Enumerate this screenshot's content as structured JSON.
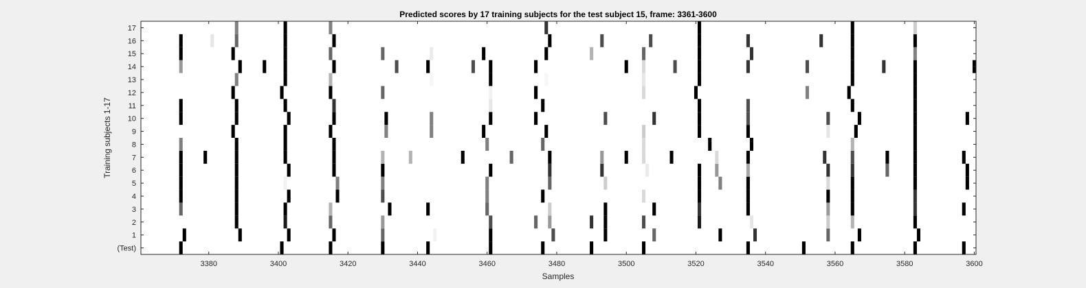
{
  "chart_data": {
    "type": "heatmap",
    "title": "Predicted scores by 17 training subjects for the test subject 15, frame: 3361-3600",
    "xlabel": "Samples",
    "ylabel": "Training subjects 1-17",
    "xlim": [
      3361,
      3600
    ],
    "xticks": [
      3380,
      3400,
      3420,
      3440,
      3460,
      3480,
      3500,
      3520,
      3540,
      3560,
      3580,
      3600
    ],
    "yticklabels": [
      "(Test)",
      "1",
      "2",
      "3",
      "4",
      "5",
      "6",
      "7",
      "8",
      "9",
      "10",
      "11",
      "12",
      "13",
      "14",
      "15",
      "16",
      "17"
    ],
    "colormap": {
      "low": "#ffffff",
      "high": "#000000"
    },
    "value_range": [
      0,
      1
    ],
    "grid": false,
    "cells": [
      {
        "row": "(Test)",
        "points": [
          [
            3372,
            1
          ],
          [
            3401,
            1
          ],
          [
            3415,
            1
          ],
          [
            3430,
            1
          ],
          [
            3443,
            1
          ],
          [
            3461,
            1
          ],
          [
            3476,
            1
          ],
          [
            3490,
            1
          ],
          [
            3505,
            1
          ],
          [
            3535,
            1
          ],
          [
            3551,
            1
          ],
          [
            3565,
            1
          ],
          [
            3583,
            1
          ],
          [
            3597,
            1
          ]
        ]
      },
      {
        "row": "1",
        "points": [
          [
            3373,
            1
          ],
          [
            3389,
            1
          ],
          [
            3403,
            1
          ],
          [
            3416,
            1
          ],
          [
            3430,
            0.6
          ],
          [
            3445,
            0.05
          ],
          [
            3461,
            1
          ],
          [
            3479,
            0.7
          ],
          [
            3494,
            1
          ],
          [
            3508,
            0.6
          ],
          [
            3527,
            1
          ],
          [
            3537,
            0.8
          ],
          [
            3558,
            0.6
          ],
          [
            3567,
            1
          ],
          [
            3584,
            1
          ]
        ]
      },
      {
        "row": "2",
        "points": [
          [
            3388,
            1
          ],
          [
            3402,
            0.9
          ],
          [
            3415,
            0.6
          ],
          [
            3430,
            0.4
          ],
          [
            3461,
            0.7
          ],
          [
            3474,
            0.6
          ],
          [
            3478,
            0.4
          ],
          [
            3490,
            0.8
          ],
          [
            3494,
            1
          ],
          [
            3505,
            0.7
          ],
          [
            3521,
            0.9
          ],
          [
            3536,
            0.1
          ],
          [
            3558,
            0.2
          ],
          [
            3565,
            0.3
          ],
          [
            3583,
            1
          ]
        ]
      },
      {
        "row": "3",
        "points": [
          [
            3372,
            0.6
          ],
          [
            3388,
            1
          ],
          [
            3402,
            1
          ],
          [
            3415,
            0.3
          ],
          [
            3432,
            1
          ],
          [
            3443,
            1
          ],
          [
            3460,
            0.6
          ],
          [
            3478,
            0.2
          ],
          [
            3494,
            1
          ],
          [
            3508,
            1
          ],
          [
            3521,
            0.8
          ],
          [
            3535,
            1
          ],
          [
            3558,
            0.4
          ],
          [
            3565,
            1
          ],
          [
            3583,
            0.8
          ],
          [
            3597,
            1
          ]
        ]
      },
      {
        "row": "4",
        "points": [
          [
            3372,
            1
          ],
          [
            3388,
            1
          ],
          [
            3403,
            1
          ],
          [
            3417,
            1
          ],
          [
            3430,
            0.7
          ],
          [
            3460,
            0.5
          ],
          [
            3476,
            1
          ],
          [
            3505,
            0.15
          ],
          [
            3521,
            1
          ],
          [
            3535,
            1
          ],
          [
            3558,
            1
          ],
          [
            3565,
            1
          ],
          [
            3583,
            0.8
          ]
        ]
      },
      {
        "row": "5",
        "points": [
          [
            3372,
            1
          ],
          [
            3388,
            1
          ],
          [
            3402,
            0.05
          ],
          [
            3417,
            0.5
          ],
          [
            3430,
            0.5
          ],
          [
            3460,
            0.5
          ],
          [
            3478,
            0.6
          ],
          [
            3494,
            0.2
          ],
          [
            3521,
            1
          ],
          [
            3527,
            0.5
          ],
          [
            3535,
            1
          ],
          [
            3558,
            0.15
          ],
          [
            3565,
            1
          ],
          [
            3583,
            1
          ],
          [
            3598,
            1
          ]
        ]
      },
      {
        "row": "6",
        "points": [
          [
            3372,
            1
          ],
          [
            3388,
            1
          ],
          [
            3403,
            1
          ],
          [
            3416,
            1
          ],
          [
            3430,
            1
          ],
          [
            3461,
            1
          ],
          [
            3478,
            0.8
          ],
          [
            3493,
            0.8
          ],
          [
            3506,
            0.08
          ],
          [
            3521,
            1
          ],
          [
            3526,
            0.4
          ],
          [
            3535,
            0.35
          ],
          [
            3558,
            0.8
          ],
          [
            3565,
            0.8
          ],
          [
            3575,
            0.6
          ],
          [
            3583,
            1
          ],
          [
            3598,
            1
          ]
        ]
      },
      {
        "row": "7",
        "points": [
          [
            3372,
            1
          ],
          [
            3379,
            1
          ],
          [
            3388,
            1
          ],
          [
            3402,
            1
          ],
          [
            3416,
            1
          ],
          [
            3430,
            0.3
          ],
          [
            3438,
            0.3
          ],
          [
            3453,
            1
          ],
          [
            3467,
            0.6
          ],
          [
            3478,
            1
          ],
          [
            3493,
            0.4
          ],
          [
            3500,
            1
          ],
          [
            3505,
            0.15
          ],
          [
            3513,
            1
          ],
          [
            3526,
            0.15
          ],
          [
            3535,
            1
          ],
          [
            3557,
            0.8
          ],
          [
            3565,
            0.7
          ],
          [
            3575,
            1
          ],
          [
            3583,
            1
          ],
          [
            3597,
            1
          ]
        ]
      },
      {
        "row": "8",
        "points": [
          [
            3372,
            0.5
          ],
          [
            3388,
            1
          ],
          [
            3402,
            1
          ],
          [
            3416,
            1
          ],
          [
            3460,
            0.5
          ],
          [
            3476,
            0.6
          ],
          [
            3505,
            0.15
          ],
          [
            3524,
            1
          ],
          [
            3536,
            1
          ],
          [
            3565,
            0.3
          ],
          [
            3583,
            1
          ]
        ]
      },
      {
        "row": "9",
        "points": [
          [
            3387,
            1
          ],
          [
            3402,
            1
          ],
          [
            3415,
            1
          ],
          [
            3431,
            0.5
          ],
          [
            3444,
            0.5
          ],
          [
            3459,
            1
          ],
          [
            3477,
            1
          ],
          [
            3505,
            0.2
          ],
          [
            3521,
            1
          ],
          [
            3535,
            1
          ],
          [
            3558,
            0.1
          ],
          [
            3566,
            1
          ],
          [
            3583,
            1
          ]
        ]
      },
      {
        "row": "10",
        "points": [
          [
            3372,
            1
          ],
          [
            3388,
            1
          ],
          [
            3403,
            1
          ],
          [
            3416,
            1
          ],
          [
            3431,
            1
          ],
          [
            3444,
            0.5
          ],
          [
            3461,
            1
          ],
          [
            3474,
            1
          ],
          [
            3494,
            0.7
          ],
          [
            3508,
            0.8
          ],
          [
            3521,
            1
          ],
          [
            3535,
            0.7
          ],
          [
            3558,
            0.7
          ],
          [
            3567,
            1
          ],
          [
            3583,
            1
          ],
          [
            3598,
            1
          ]
        ]
      },
      {
        "row": "11",
        "points": [
          [
            3372,
            1
          ],
          [
            3388,
            1
          ],
          [
            3402,
            1
          ],
          [
            3416,
            0.8
          ],
          [
            3461,
            0.1
          ],
          [
            3476,
            1
          ],
          [
            3521,
            1
          ],
          [
            3535,
            0.7
          ],
          [
            3565,
            1
          ],
          [
            3583,
            1
          ]
        ]
      },
      {
        "row": "12",
        "points": [
          [
            3387,
            1
          ],
          [
            3401,
            1
          ],
          [
            3415,
            1
          ],
          [
            3430,
            0.6
          ],
          [
            3461,
            0.05
          ],
          [
            3474,
            1
          ],
          [
            3505,
            0.15
          ],
          [
            3520,
            1
          ],
          [
            3552,
            0.5
          ],
          [
            3564,
            1
          ],
          [
            3583,
            1
          ]
        ]
      },
      {
        "row": "13",
        "points": [
          [
            3388,
            0.5
          ],
          [
            3402,
            1
          ],
          [
            3415,
            0.3
          ],
          [
            3444,
            0.03
          ],
          [
            3461,
            1
          ],
          [
            3477,
            0.03
          ],
          [
            3505,
            0.1
          ],
          [
            3521,
            1
          ],
          [
            3565,
            1
          ],
          [
            3583,
            1
          ]
        ]
      },
      {
        "row": "14",
        "points": [
          [
            3372,
            0.4
          ],
          [
            3389,
            1
          ],
          [
            3396,
            1
          ],
          [
            3402,
            1
          ],
          [
            3416,
            1
          ],
          [
            3434,
            0.7
          ],
          [
            3443,
            1
          ],
          [
            3456,
            0.7
          ],
          [
            3461,
            1
          ],
          [
            3474,
            1
          ],
          [
            3500,
            1
          ],
          [
            3505,
            0.15
          ],
          [
            3514,
            0.7
          ],
          [
            3521,
            1
          ],
          [
            3535,
            0.8
          ],
          [
            3552,
            0.7
          ],
          [
            3565,
            1
          ],
          [
            3574,
            0.8
          ],
          [
            3583,
            1
          ],
          [
            3600,
            1
          ]
        ]
      },
      {
        "row": "15",
        "points": [
          [
            3372,
            1
          ],
          [
            3387,
            1
          ],
          [
            3402,
            1
          ],
          [
            3415,
            0.6
          ],
          [
            3430,
            0.6
          ],
          [
            3444,
            0.08
          ],
          [
            3459,
            1
          ],
          [
            3477,
            1
          ],
          [
            3490,
            0.3
          ],
          [
            3505,
            0.6
          ],
          [
            3521,
            1
          ],
          [
            3536,
            0.8
          ],
          [
            3565,
            1
          ],
          [
            3583,
            0.5
          ]
        ]
      },
      {
        "row": "16",
        "points": [
          [
            3372,
            1
          ],
          [
            3381,
            0.1
          ],
          [
            3388,
            0.6
          ],
          [
            3402,
            1
          ],
          [
            3416,
            1
          ],
          [
            3478,
            1
          ],
          [
            3493,
            0.7
          ],
          [
            3507,
            0.7
          ],
          [
            3521,
            1
          ],
          [
            3535,
            0.8
          ],
          [
            3556,
            0.8
          ],
          [
            3565,
            1
          ],
          [
            3583,
            1
          ]
        ]
      },
      {
        "row": "17",
        "points": [
          [
            3388,
            0.5
          ],
          [
            3402,
            1
          ],
          [
            3415,
            0.5
          ],
          [
            3477,
            0.8
          ],
          [
            3521,
            1
          ],
          [
            3565,
            1
          ],
          [
            3583,
            0.2
          ]
        ]
      }
    ]
  }
}
